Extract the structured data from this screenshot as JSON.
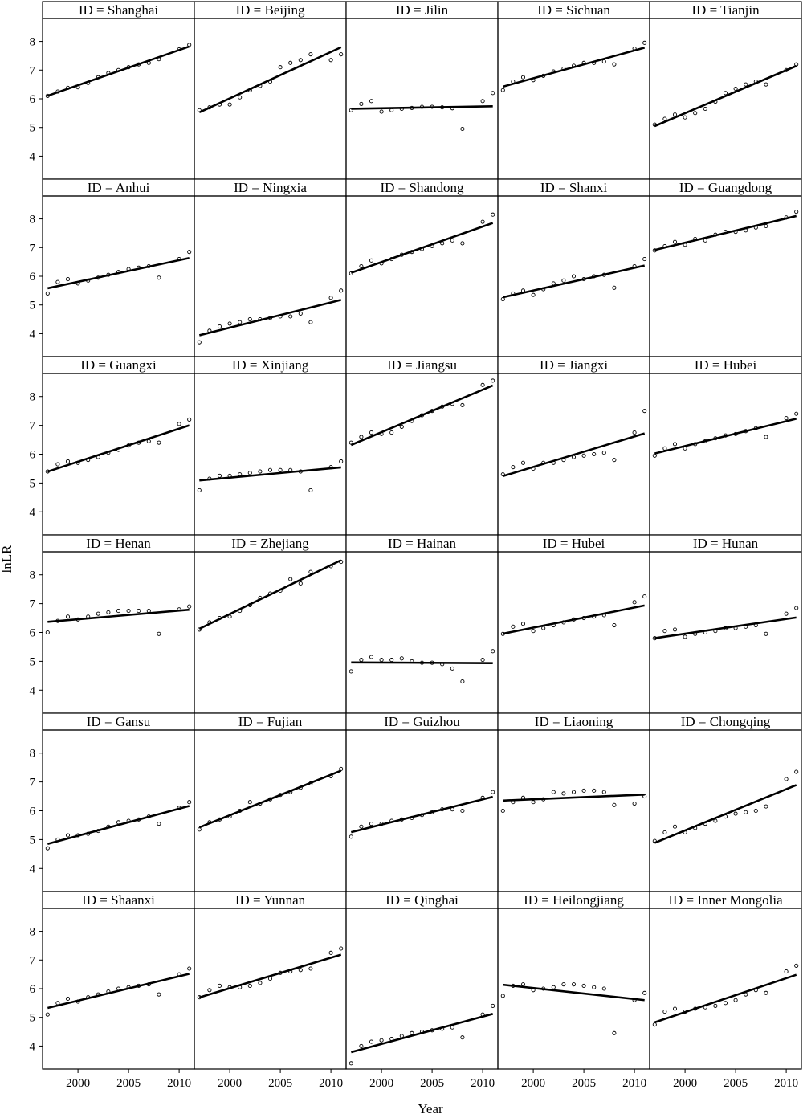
{
  "chart_data": {
    "type": "scatter",
    "layout": "lattice-5x6",
    "xlabel": "Year",
    "ylabel": "lnLR",
    "xlim": [
      1996.5,
      2011.5
    ],
    "ylim": [
      3.2,
      8.8
    ],
    "x_ticks": [
      2000,
      2005,
      2010
    ],
    "y_ticks": [
      4,
      5,
      6,
      7,
      8
    ],
    "years": [
      1997,
      1998,
      1999,
      2000,
      2001,
      2002,
      2003,
      2004,
      2005,
      2006,
      2007,
      2008,
      2009,
      2010,
      2011
    ],
    "fit_line": "linear",
    "panels": [
      {
        "id": "ID = Shanghai",
        "values": [
          6.1,
          6.25,
          6.38,
          6.4,
          6.55,
          6.75,
          6.9,
          7.0,
          7.1,
          7.2,
          7.25,
          7.38,
          null,
          7.72,
          7.88
        ]
      },
      {
        "id": "ID = Beijing",
        "values": [
          5.6,
          5.7,
          5.8,
          5.8,
          6.05,
          6.3,
          6.45,
          6.6,
          7.1,
          7.25,
          7.35,
          7.55,
          null,
          7.35,
          7.55
        ]
      },
      {
        "id": "ID = Jilin",
        "values": [
          5.6,
          5.82,
          5.92,
          5.55,
          5.6,
          5.65,
          5.68,
          5.72,
          5.72,
          5.7,
          5.67,
          4.95,
          null,
          5.92,
          6.2
        ]
      },
      {
        "id": "ID = Sichuan",
        "values": [
          6.3,
          6.6,
          6.75,
          6.65,
          6.8,
          6.95,
          7.05,
          7.15,
          7.25,
          7.25,
          7.3,
          7.2,
          null,
          7.75,
          7.95
        ]
      },
      {
        "id": "ID = Tianjin",
        "values": [
          5.1,
          5.3,
          5.45,
          5.35,
          5.5,
          5.65,
          5.9,
          6.2,
          6.35,
          6.5,
          6.6,
          6.5,
          null,
          7.0,
          7.2
        ]
      },
      {
        "id": "ID = Anhui",
        "values": [
          5.4,
          5.8,
          5.9,
          5.75,
          5.85,
          5.95,
          6.05,
          6.15,
          6.25,
          6.3,
          6.35,
          5.95,
          null,
          6.6,
          6.85
        ]
      },
      {
        "id": "ID = Ningxia",
        "values": [
          3.7,
          4.1,
          4.25,
          4.35,
          4.4,
          4.5,
          4.5,
          4.55,
          4.6,
          4.6,
          4.7,
          4.4,
          null,
          5.25,
          5.5
        ]
      },
      {
        "id": "ID = Shandong",
        "values": [
          6.1,
          6.35,
          6.55,
          6.45,
          6.6,
          6.75,
          6.85,
          6.95,
          7.05,
          7.15,
          7.25,
          7.15,
          null,
          7.9,
          8.15
        ]
      },
      {
        "id": "ID = Shanxi",
        "values": [
          5.2,
          5.4,
          5.5,
          5.35,
          5.55,
          5.75,
          5.85,
          6.0,
          5.9,
          6.0,
          6.05,
          5.6,
          null,
          6.35,
          6.6
        ]
      },
      {
        "id": "ID = Guangdong",
        "values": [
          6.9,
          7.05,
          7.2,
          7.1,
          7.3,
          7.25,
          7.45,
          7.55,
          7.55,
          7.6,
          7.7,
          7.75,
          null,
          8.05,
          8.25
        ]
      },
      {
        "id": "ID = Guangxi",
        "values": [
          5.4,
          5.65,
          5.75,
          5.7,
          5.8,
          5.9,
          6.05,
          6.15,
          6.3,
          6.4,
          6.45,
          6.4,
          null,
          7.05,
          7.2
        ]
      },
      {
        "id": "ID = Xinjiang",
        "values": [
          4.75,
          5.15,
          5.25,
          5.25,
          5.3,
          5.35,
          5.4,
          5.45,
          5.45,
          5.45,
          5.4,
          4.75,
          null,
          5.55,
          5.75
        ]
      },
      {
        "id": "ID = Jiangsu",
        "values": [
          6.4,
          6.6,
          6.75,
          6.7,
          6.75,
          6.95,
          7.15,
          7.35,
          7.5,
          7.65,
          7.75,
          7.7,
          null,
          8.4,
          8.55
        ]
      },
      {
        "id": "ID = Jiangxi",
        "values": [
          5.3,
          5.55,
          5.7,
          5.5,
          5.7,
          5.7,
          5.8,
          5.9,
          5.95,
          6.0,
          6.05,
          5.8,
          null,
          6.75,
          7.5
        ]
      },
      {
        "id": "ID = Hubei",
        "values": [
          5.95,
          6.2,
          6.35,
          6.2,
          6.35,
          6.45,
          6.55,
          6.65,
          6.7,
          6.8,
          6.9,
          6.6,
          null,
          7.25,
          7.4
        ]
      },
      {
        "id": "ID = Henan",
        "values": [
          6.0,
          6.4,
          6.55,
          6.45,
          6.55,
          6.65,
          6.7,
          6.75,
          6.75,
          6.75,
          6.75,
          5.95,
          null,
          6.8,
          6.9
        ]
      },
      {
        "id": "ID = Zhejiang",
        "values": [
          6.1,
          6.35,
          6.5,
          6.55,
          6.75,
          6.95,
          7.2,
          7.35,
          7.45,
          7.85,
          7.7,
          8.1,
          null,
          8.3,
          8.45
        ]
      },
      {
        "id": "ID = Hainan",
        "values": [
          4.65,
          5.05,
          5.15,
          5.05,
          5.05,
          5.1,
          5.0,
          4.95,
          4.95,
          4.9,
          4.75,
          4.3,
          null,
          5.05,
          5.35
        ]
      },
      {
        "id": "ID = Hubei",
        "values": [
          5.95,
          6.2,
          6.3,
          6.05,
          6.15,
          6.25,
          6.35,
          6.45,
          6.5,
          6.55,
          6.6,
          6.25,
          null,
          7.05,
          7.25
        ]
      },
      {
        "id": "ID = Hunan",
        "values": [
          5.8,
          6.05,
          6.1,
          5.85,
          5.95,
          6.0,
          6.05,
          6.15,
          6.15,
          6.2,
          6.25,
          5.95,
          null,
          6.65,
          6.85
        ]
      },
      {
        "id": "ID = Gansu",
        "values": [
          4.7,
          5.0,
          5.15,
          5.15,
          5.2,
          5.3,
          5.45,
          5.6,
          5.65,
          5.7,
          5.8,
          5.55,
          null,
          6.1,
          6.3
        ]
      },
      {
        "id": "ID = Fujian",
        "values": [
          5.35,
          5.6,
          5.7,
          5.8,
          6.0,
          6.3,
          6.25,
          6.4,
          6.55,
          6.65,
          6.8,
          6.95,
          null,
          7.2,
          7.45
        ]
      },
      {
        "id": "ID = Guizhou",
        "values": [
          5.1,
          5.45,
          5.55,
          5.55,
          5.65,
          5.7,
          5.75,
          5.85,
          5.95,
          6.05,
          6.05,
          6.0,
          null,
          6.45,
          6.65
        ]
      },
      {
        "id": "ID = Liaoning",
        "values": [
          6.0,
          6.3,
          6.45,
          6.3,
          6.4,
          6.65,
          6.6,
          6.65,
          6.7,
          6.7,
          6.65,
          6.2,
          null,
          6.25,
          6.5
        ]
      },
      {
        "id": "ID = Chongqing",
        "values": [
          4.95,
          5.25,
          5.45,
          5.25,
          5.4,
          5.55,
          5.65,
          5.8,
          5.9,
          5.95,
          6.0,
          6.15,
          null,
          7.1,
          7.35
        ]
      },
      {
        "id": "ID = Shaanxi",
        "values": [
          5.1,
          5.5,
          5.65,
          5.55,
          5.7,
          5.8,
          5.9,
          6.0,
          6.05,
          6.1,
          6.15,
          5.8,
          null,
          6.5,
          6.7
        ]
      },
      {
        "id": "ID = Yunnan",
        "values": [
          5.7,
          5.95,
          6.1,
          6.05,
          6.05,
          6.1,
          6.2,
          6.35,
          6.55,
          6.6,
          6.65,
          6.7,
          null,
          7.25,
          7.4
        ]
      },
      {
        "id": "ID = Qinghai",
        "values": [
          3.4,
          4.0,
          4.15,
          4.2,
          4.25,
          4.35,
          4.45,
          4.5,
          4.55,
          4.6,
          4.65,
          4.3,
          null,
          5.1,
          5.4
        ]
      },
      {
        "id": "ID = Heilongjiang",
        "values": [
          5.75,
          6.1,
          6.15,
          5.95,
          6.0,
          6.05,
          6.15,
          6.15,
          6.1,
          6.05,
          6.0,
          4.45,
          null,
          5.6,
          5.85
        ]
      },
      {
        "id": "ID = Inner Mongolia",
        "values": [
          4.75,
          5.2,
          5.3,
          5.2,
          5.3,
          5.35,
          5.4,
          5.5,
          5.6,
          5.8,
          5.95,
          5.85,
          null,
          6.6,
          6.8
        ]
      }
    ]
  }
}
